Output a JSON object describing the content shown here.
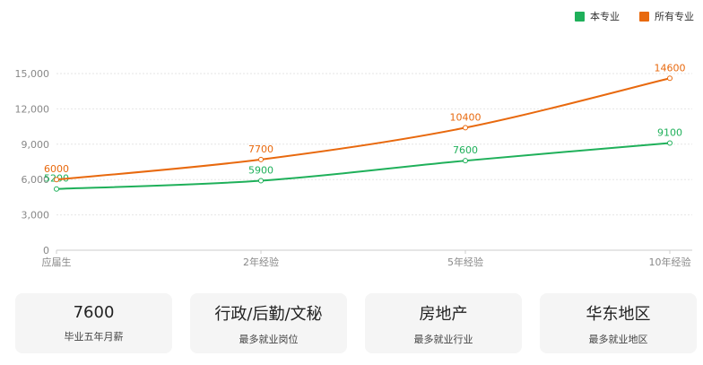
{
  "chart_data": {
    "type": "line",
    "categories": [
      "应届生",
      "2年经验",
      "5年经验",
      "10年经验"
    ],
    "series": [
      {
        "name": "本专业",
        "values": [
          5200,
          5900,
          7600,
          9100
        ],
        "color": "#1fb05a"
      },
      {
        "name": "所有专业",
        "values": [
          6000,
          7700,
          10400,
          14600
        ],
        "color": "#e8690e"
      }
    ],
    "yticks": [
      "0",
      "3,000",
      "6,000",
      "9,000",
      "12,000",
      "15,000"
    ],
    "ylim": [
      0,
      15000
    ],
    "grid": true,
    "legend_position": "top-right"
  },
  "stats": [
    {
      "value": "7600",
      "label": "毕业五年月薪"
    },
    {
      "value": "行政/后勤/文秘",
      "label": "最多就业岗位"
    },
    {
      "value": "房地产",
      "label": "最多就业行业"
    },
    {
      "value": "华东地区",
      "label": "最多就业地区"
    }
  ]
}
